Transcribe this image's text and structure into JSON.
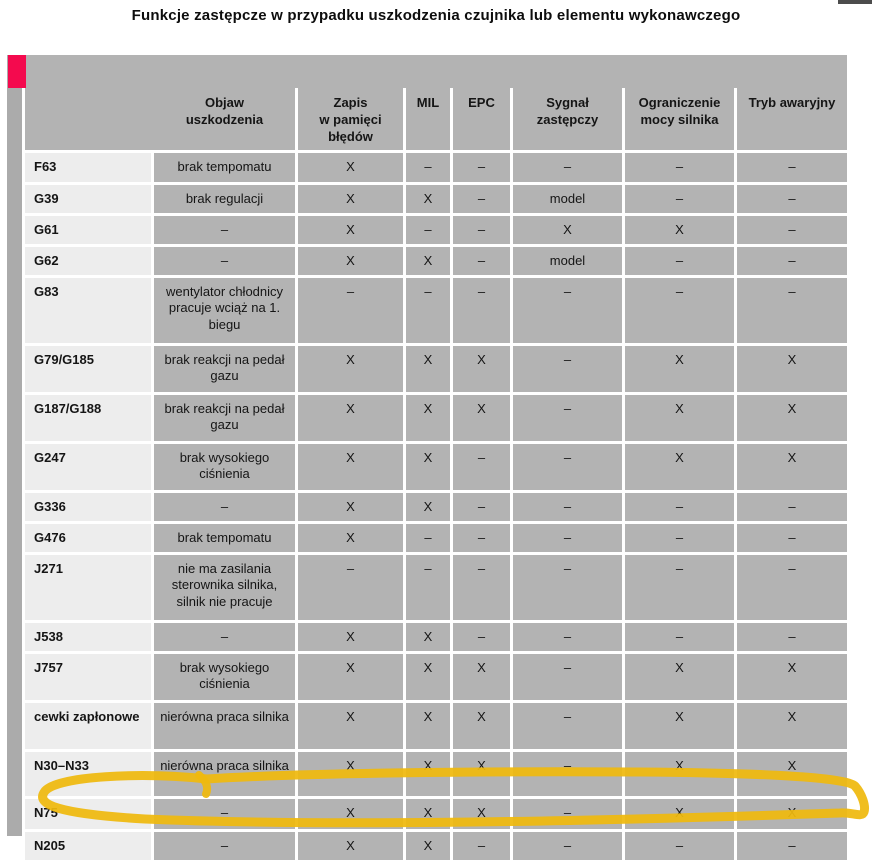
{
  "page": {
    "title": "Funkcje zastępcze w przypadku uszkodzenia czujnika lub elementu wykonawczego"
  },
  "table": {
    "columns": [
      {
        "label": "Objaw\nuszkodzenia"
      },
      {
        "label": "Zapis\nw pamięci\nbłędów"
      },
      {
        "label": "MIL"
      },
      {
        "label": "EPC"
      },
      {
        "label": "Sygnał\nzastępczy"
      },
      {
        "label": "Ograniczenie\nmocy silnika"
      },
      {
        "label": "Tryb awaryjny"
      }
    ],
    "rows": [
      {
        "label": "F63",
        "symptom": "brak tempomatu",
        "marks": [
          "X",
          "–",
          "–",
          "–",
          "–",
          "–"
        ],
        "highlighted": false
      },
      {
        "label": "G39",
        "symptom": "brak regulacji",
        "marks": [
          "X",
          "X",
          "–",
          "model",
          "–",
          "–"
        ],
        "highlighted": false
      },
      {
        "label": "G61",
        "symptom": "–",
        "marks": [
          "X",
          "–",
          "–",
          "X",
          "X",
          "–"
        ],
        "highlighted": false
      },
      {
        "label": "G62",
        "symptom": "–",
        "marks": [
          "X",
          "X",
          "–",
          "model",
          "–",
          "–"
        ],
        "highlighted": false
      },
      {
        "label": "G83",
        "symptom": "wentylator chłodnicy pracuje wciąż na 1. biegu",
        "marks": [
          "–",
          "–",
          "–",
          "–",
          "–",
          "–"
        ],
        "highlighted": false
      },
      {
        "label": "G79/G185",
        "symptom": "brak reakcji na pedał gazu",
        "marks": [
          "X",
          "X",
          "X",
          "–",
          "X",
          "X"
        ],
        "highlighted": false
      },
      {
        "label": "G187/G188",
        "symptom": "brak reakcji na pedał gazu",
        "marks": [
          "X",
          "X",
          "X",
          "–",
          "X",
          "X"
        ],
        "highlighted": false
      },
      {
        "label": "G247",
        "symptom": "brak wysokiego ciśnienia",
        "marks": [
          "X",
          "X",
          "–",
          "–",
          "X",
          "X"
        ],
        "highlighted": false
      },
      {
        "label": "G336",
        "symptom": "–",
        "marks": [
          "X",
          "X",
          "–",
          "–",
          "–",
          "–"
        ],
        "highlighted": false
      },
      {
        "label": "G476",
        "symptom": "brak tempomatu",
        "marks": [
          "X",
          "–",
          "–",
          "–",
          "–",
          "–"
        ],
        "highlighted": false
      },
      {
        "label": "J271",
        "symptom": "nie ma zasilania sterownika silnika, silnik nie pracuje",
        "marks": [
          "–",
          "–",
          "–",
          "–",
          "–",
          "–"
        ],
        "highlighted": false
      },
      {
        "label": "J538",
        "symptom": "–",
        "marks": [
          "X",
          "X",
          "–",
          "–",
          "–",
          "–"
        ],
        "highlighted": false
      },
      {
        "label": "J757",
        "symptom": "brak wysokiego ciśnienia",
        "marks": [
          "X",
          "X",
          "X",
          "–",
          "X",
          "X"
        ],
        "highlighted": false
      },
      {
        "label": "cewki zapłonowe",
        "symptom": "nierówna praca silnika",
        "marks": [
          "X",
          "X",
          "X",
          "–",
          "X",
          "X"
        ],
        "highlighted": false
      },
      {
        "label": "N30–N33",
        "symptom": "nierówna praca silnika",
        "marks": [
          "X",
          "X",
          "X",
          "–",
          "X",
          "X"
        ],
        "highlighted": false
      },
      {
        "label": "N75",
        "symptom": "–",
        "marks": [
          "X",
          "X",
          "X",
          "–",
          "X",
          "X"
        ],
        "highlighted": true
      },
      {
        "label": "N205",
        "symptom": "–",
        "marks": [
          "X",
          "X",
          "–",
          "–",
          "–",
          "–"
        ],
        "highlighted": false
      }
    ]
  },
  "annotations": {
    "highlight_circle": {
      "shape": "hand-drawn-ellipse",
      "row": "N75",
      "color": "#efb90e"
    }
  },
  "colors": {
    "cell_gray": "#b3b3b3",
    "label_gray": "#ededed",
    "stripe_gray": "#ababab",
    "accent_red": "#f40a4e",
    "marker_yellow": "#efb90e"
  }
}
